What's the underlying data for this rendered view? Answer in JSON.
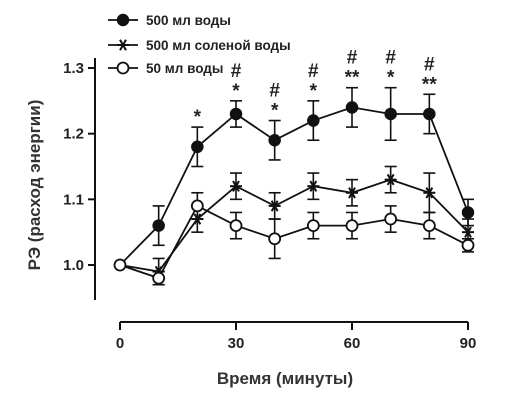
{
  "chart_data": {
    "type": "line",
    "xlabel": "Время (минуты)",
    "ylabel": "РЭ (расход энергии)",
    "xlim": [
      0,
      90
    ],
    "ylim": [
      0.95,
      1.3
    ],
    "xticks": [
      0,
      30,
      60,
      90
    ],
    "yticks": [
      1.0,
      1.1,
      1.2,
      1.3
    ],
    "ytick_labels": [
      "1.0",
      "1.1",
      "1.2",
      "1.3"
    ],
    "xtick_labels": [
      "0",
      "30",
      "60",
      "90"
    ],
    "legend_position": "top-left",
    "x": [
      0,
      10,
      20,
      30,
      40,
      50,
      60,
      70,
      80,
      90
    ],
    "series": [
      {
        "name": "500 мл воды",
        "marker": "filled-circle",
        "values": [
          1.0,
          1.06,
          1.18,
          1.23,
          1.19,
          1.22,
          1.24,
          1.23,
          1.23,
          1.08
        ],
        "errors": [
          0,
          0.03,
          0.03,
          0.02,
          0.03,
          0.03,
          0.03,
          0.04,
          0.03,
          0.02
        ]
      },
      {
        "name": "500 мл соленой воды",
        "marker": "asterisk",
        "values": [
          1.0,
          0.99,
          1.07,
          1.12,
          1.09,
          1.12,
          1.11,
          1.13,
          1.11,
          1.05
        ],
        "errors": [
          0,
          0.02,
          0.02,
          0.02,
          0.02,
          0.02,
          0.02,
          0.02,
          0.03,
          0.02
        ]
      },
      {
        "name": "50 мл воды",
        "marker": "open-circle",
        "values": [
          1.0,
          0.98,
          1.09,
          1.06,
          1.04,
          1.06,
          1.06,
          1.07,
          1.06,
          1.03
        ],
        "errors": [
          0,
          0.01,
          0.02,
          0.02,
          0.03,
          0.02,
          0.02,
          0.02,
          0.02,
          0.01
        ]
      }
    ],
    "annotations": [
      {
        "x": 20,
        "lines": [
          "*"
        ]
      },
      {
        "x": 30,
        "lines": [
          "#",
          "*"
        ]
      },
      {
        "x": 40,
        "lines": [
          "#",
          "*"
        ]
      },
      {
        "x": 50,
        "lines": [
          "#",
          "*"
        ]
      },
      {
        "x": 60,
        "lines": [
          "#",
          "**"
        ]
      },
      {
        "x": 70,
        "lines": [
          "#",
          "*"
        ]
      },
      {
        "x": 80,
        "lines": [
          "#",
          "**"
        ]
      }
    ]
  }
}
